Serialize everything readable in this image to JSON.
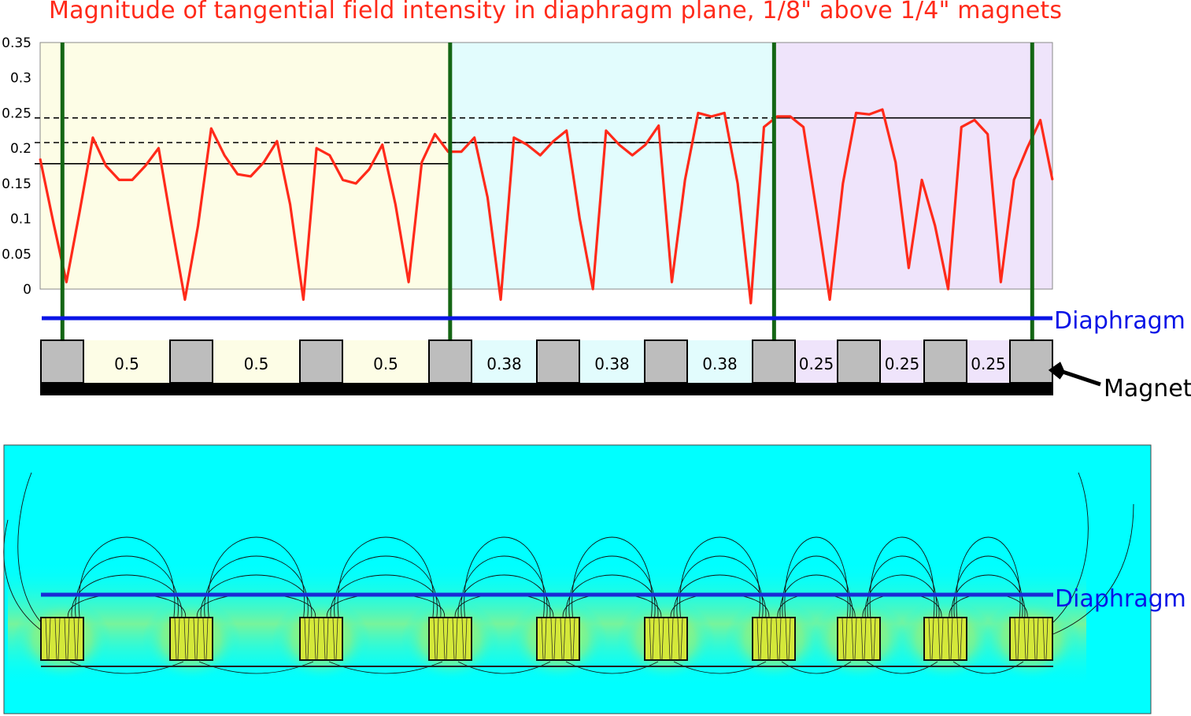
{
  "chart_data": {
    "type": "line",
    "title": "Magnitude of tangential field intensity in diaphragm plane, 1/8\" above 1/4\" magnets",
    "xlabel": "",
    "ylabel": "",
    "ylim": [
      0,
      0.35
    ],
    "y_ticks": [
      "0.35",
      "0.3",
      "0.25",
      "0.2",
      "0.15",
      "0.1",
      "0.05",
      "0"
    ],
    "y_tick_values": [
      0.35,
      0.3,
      0.25,
      0.2,
      0.15,
      0.1,
      0.05,
      0
    ],
    "grid": false,
    "xlim": [
      0,
      100
    ],
    "x": [
      0,
      1.3,
      2.6,
      3.9,
      5.2,
      6.5,
      7.8,
      9.1,
      10.4,
      11.7,
      13.0,
      14.3,
      15.6,
      16.9,
      18.2,
      19.5,
      20.8,
      22.1,
      23.4,
      24.7,
      26.0,
      27.3,
      28.6,
      29.9,
      31.2,
      32.5,
      33.8,
      35.1,
      36.4,
      37.7,
      39.0,
      40.3,
      41.6,
      42.9,
      44.2,
      45.5,
      46.8,
      48.1,
      49.4,
      50.7,
      52.0,
      53.3,
      54.6,
      55.9,
      57.2,
      58.5,
      59.8,
      61.1,
      62.4,
      63.7,
      65.0,
      66.3,
      67.6,
      68.9,
      70.2,
      71.5,
      72.8,
      74.1,
      75.4,
      76.7,
      78.0,
      79.3,
      80.6,
      81.9,
      83.2,
      84.5,
      85.8,
      87.1,
      88.4,
      89.7,
      91.0,
      92.3,
      93.6,
      94.9,
      96.2,
      97.5,
      98.8,
      100.0
    ],
    "series": [
      {
        "values": [
          0.185,
          0.095,
          0.01,
          0.11,
          0.215,
          0.175,
          0.155,
          0.155,
          0.175,
          0.2,
          0.09,
          -0.015,
          0.09,
          0.228,
          0.19,
          0.163,
          0.16,
          0.18,
          0.21,
          0.12,
          -0.015,
          0.2,
          0.19,
          0.155,
          0.15,
          0.17,
          0.205,
          0.12,
          0.01,
          0.18,
          0.22,
          0.195,
          0.195,
          0.215,
          0.13,
          -0.015,
          0.215,
          0.205,
          0.19,
          0.21,
          0.225,
          0.1,
          0.0,
          0.225,
          0.205,
          0.19,
          0.205,
          0.232,
          0.01,
          0.155,
          0.25,
          0.245,
          0.25,
          0.15,
          -0.02,
          0.23,
          0.245,
          0.245,
          0.23,
          0.11,
          -0.015,
          0.15,
          0.25,
          0.248,
          0.255,
          0.18,
          0.03,
          0.155,
          0.09,
          0.0,
          0.23,
          0.24,
          0.22,
          0.01,
          0.155,
          0.2,
          0.24,
          0.155
        ],
        "color": "#ff2a1a"
      }
    ],
    "reference_lines": [
      {
        "y": 0.178,
        "x_from": 0,
        "x_to": 40.5,
        "style": "solid"
      },
      {
        "y": 0.208,
        "x_from": 0,
        "x_to": 72.5,
        "style": "dashed"
      },
      {
        "y": 0.208,
        "x_from": 40.5,
        "x_to": 72.5,
        "style": "solid"
      },
      {
        "y": 0.243,
        "x_from": 0,
        "x_to": 72.5,
        "style": "dashed"
      },
      {
        "y": 0.243,
        "x_from": 72.5,
        "x_to": 98,
        "style": "solid"
      }
    ],
    "vertical_markers_x": [
      2.2,
      40.5,
      72.5,
      98
    ],
    "bands": [
      {
        "x_from": 0,
        "x_to": 40.5,
        "color": "#fdfde6"
      },
      {
        "x_from": 40.5,
        "x_to": 72.5,
        "color": "#e2fcfd"
      },
      {
        "x_from": 72.5,
        "x_to": 100,
        "color": "#efe4fb"
      }
    ]
  },
  "magnet_strip": {
    "gap_labels": [
      "0.5",
      "0.5",
      "0.5",
      "0.38",
      "0.38",
      "0.38",
      "0.25",
      "0.25",
      "0.25"
    ],
    "diaphragm_label": "Diaphragm",
    "magnet_label": "Magnet"
  },
  "field_plot": {
    "diaphragm_label": "Diaphragm",
    "background_color": "#00ffff",
    "magnet_count": 10
  },
  "colors": {
    "line": "#ff2a1a",
    "divider": "#146614",
    "diaphragm": "#0a14e6",
    "magnet": "#bdbdbd",
    "base": "#000000"
  }
}
